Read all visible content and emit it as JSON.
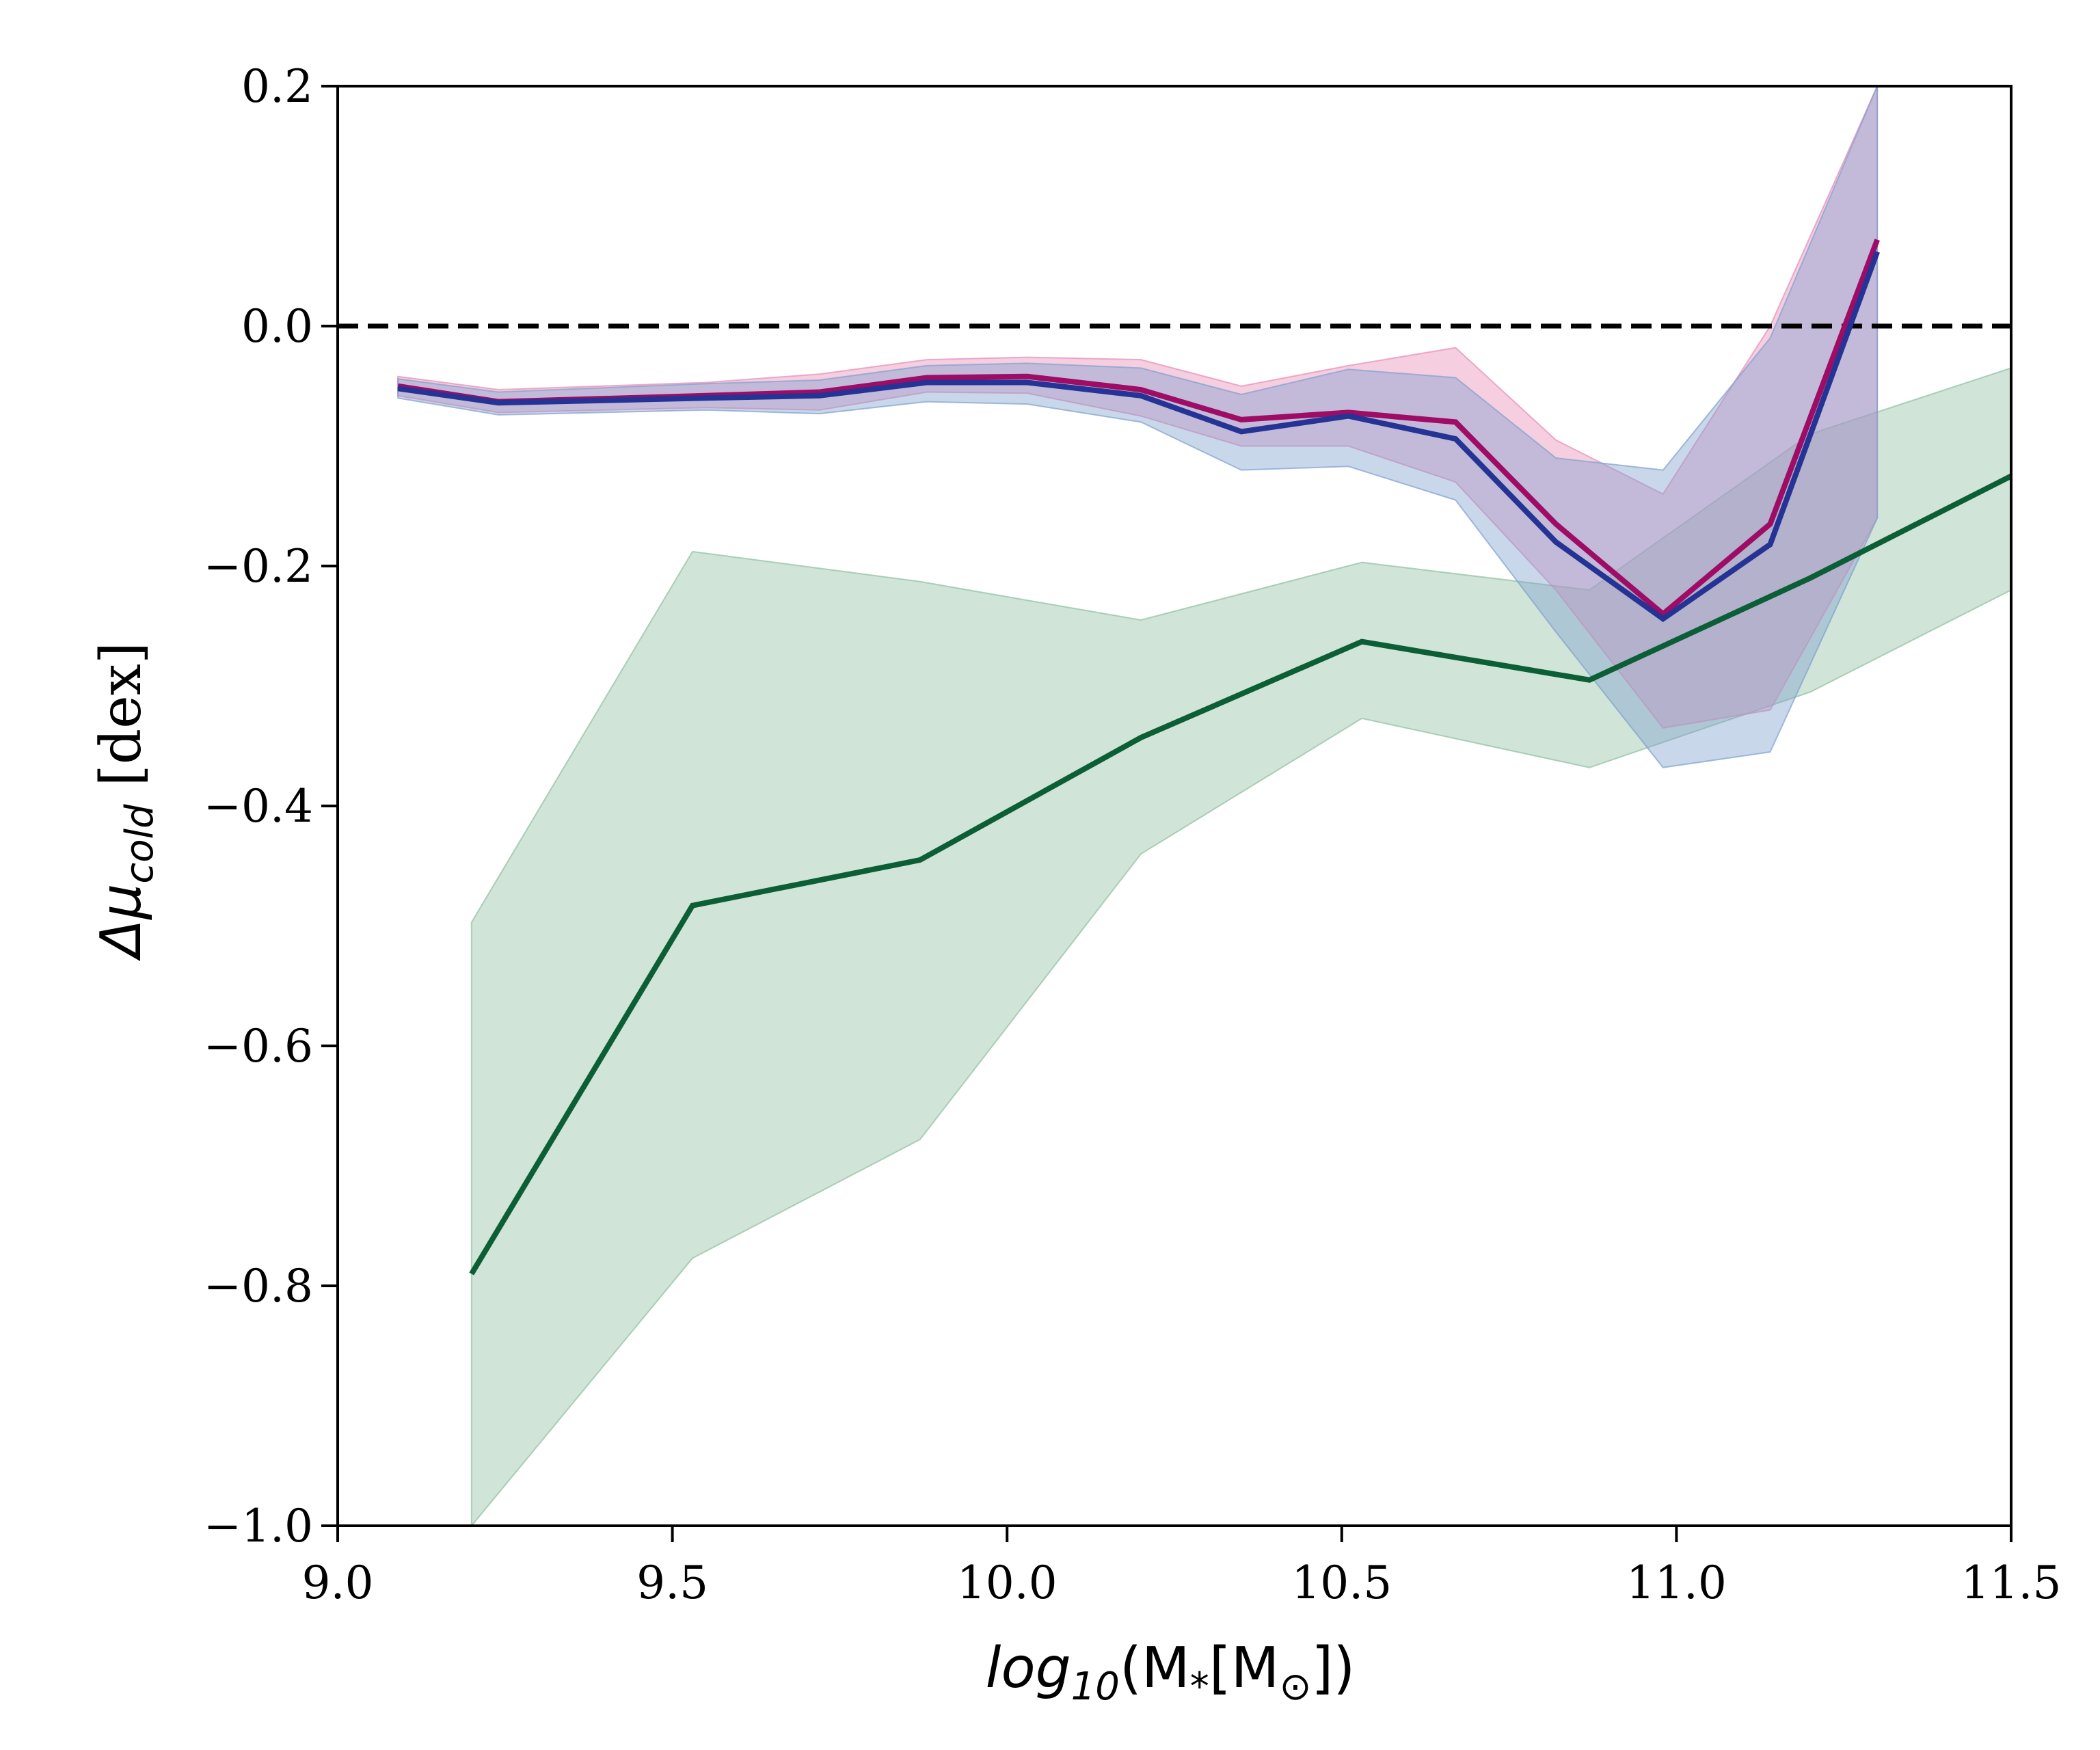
{
  "chart_data": {
    "type": "line",
    "title": "",
    "xlabel": {
      "main": "log",
      "sub": "10",
      "rest": "(M",
      "sub2": "*",
      "bracket": "[M",
      "sub3": "⊙",
      "close": "])"
    },
    "ylabel": {
      "delta": "Δμ",
      "sub": "cold",
      "rest": " [dex]"
    },
    "xlim": [
      9.0,
      11.5
    ],
    "ylim": [
      -1.0,
      0.2
    ],
    "xticks": [
      9.0,
      9.5,
      10.0,
      10.5,
      11.0,
      11.5
    ],
    "xtick_labels": [
      "9.0",
      "9.5",
      "10.0",
      "10.5",
      "11.0",
      "11.5"
    ],
    "yticks": [
      0.2,
      0.0,
      -0.2,
      -0.4,
      -0.6,
      -0.8,
      -1.0
    ],
    "ytick_labels": [
      "0.2",
      "0.0",
      "−0.2",
      "−0.4",
      "−0.6",
      "−0.8",
      "−1.0"
    ],
    "reference_line": {
      "y": 0.0,
      "style": "dashed",
      "color": "#000000"
    },
    "series": [
      {
        "name": "green",
        "color": "#0b5e35",
        "band_color": "#8fbf9f",
        "x": [
          9.2,
          9.53,
          9.87,
          10.2,
          10.53,
          10.87,
          11.2,
          11.5
        ],
        "values": [
          -0.79,
          -0.483,
          -0.445,
          -0.343,
          -0.263,
          -0.295,
          -0.21,
          -0.125
        ],
        "lower": [
          -1.0,
          -0.777,
          -0.678,
          -0.44,
          -0.327,
          -0.368,
          -0.305,
          -0.22
        ],
        "upper": [
          -0.497,
          -0.188,
          -0.213,
          -0.245,
          -0.197,
          -0.22,
          -0.09,
          -0.035
        ]
      },
      {
        "name": "magenta",
        "color": "#9e0c66",
        "band_color": "#e88bb4",
        "x": [
          9.09,
          9.24,
          9.55,
          9.72,
          9.88,
          10.03,
          10.2,
          10.35,
          10.51,
          10.67,
          10.82,
          10.98,
          11.14,
          11.3
        ],
        "values": [
          -0.05,
          -0.063,
          -0.058,
          -0.055,
          -0.043,
          -0.042,
          -0.053,
          -0.078,
          -0.072,
          -0.08,
          -0.165,
          -0.24,
          -0.165,
          0.072
        ],
        "lower": [
          -0.058,
          -0.072,
          -0.068,
          -0.07,
          -0.055,
          -0.056,
          -0.075,
          -0.1,
          -0.1,
          -0.13,
          -0.22,
          -0.335,
          -0.32,
          -0.16
        ],
        "upper": [
          -0.042,
          -0.053,
          -0.047,
          -0.04,
          -0.028,
          -0.026,
          -0.028,
          -0.05,
          -0.033,
          -0.018,
          -0.095,
          -0.14,
          0.0,
          0.2
        ]
      },
      {
        "name": "blue",
        "color": "#253494",
        "band_color": "#7f9fcf",
        "x": [
          9.09,
          9.24,
          9.55,
          9.72,
          9.88,
          10.03,
          10.2,
          10.35,
          10.51,
          10.67,
          10.82,
          10.98,
          11.14,
          11.3
        ],
        "values": [
          -0.052,
          -0.064,
          -0.06,
          -0.058,
          -0.047,
          -0.047,
          -0.058,
          -0.088,
          -0.075,
          -0.094,
          -0.18,
          -0.244,
          -0.182,
          0.062
        ],
        "lower": [
          -0.06,
          -0.074,
          -0.07,
          -0.073,
          -0.063,
          -0.065,
          -0.08,
          -0.12,
          -0.117,
          -0.145,
          -0.255,
          -0.368,
          -0.355,
          -0.16
        ],
        "upper": [
          -0.044,
          -0.055,
          -0.048,
          -0.045,
          -0.033,
          -0.031,
          -0.035,
          -0.057,
          -0.036,
          -0.043,
          -0.11,
          -0.12,
          -0.01,
          0.2
        ]
      }
    ]
  }
}
